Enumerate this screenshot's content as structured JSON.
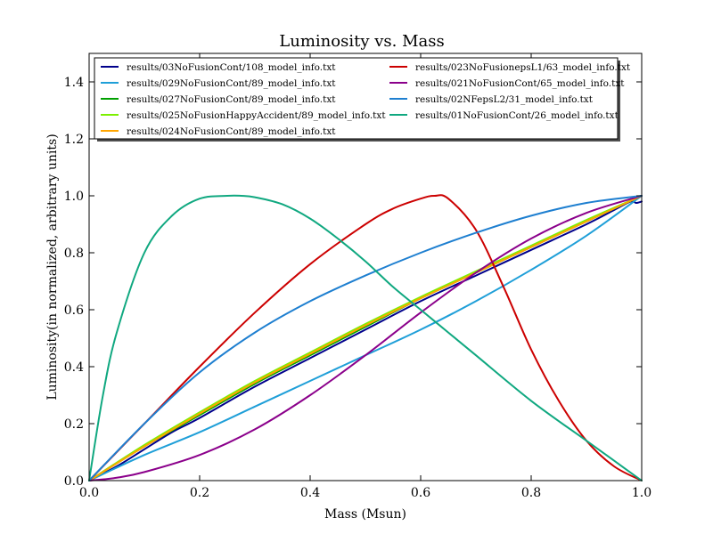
{
  "chart_data": {
    "type": "line",
    "title": "Luminosity vs. Mass",
    "xlabel": "Mass (Msun)",
    "ylabel": "Luminosity(in normalized, arbitrary units)",
    "xlim": [
      0.0,
      1.0
    ],
    "ylim": [
      0.0,
      1.5
    ],
    "xticks": [
      "0.0",
      "0.2",
      "0.4",
      "0.6",
      "0.8",
      "1.0"
    ],
    "yticks": [
      "0.0",
      "0.2",
      "0.4",
      "0.6",
      "0.8",
      "1.0",
      "1.2",
      "1.4"
    ],
    "grid": false,
    "legend_position": "top",
    "series": [
      {
        "name": "results/03NoFusionCont/108_model_info.txt",
        "color": "#00008b",
        "x": [
          0,
          0.05,
          0.1,
          0.15,
          0.2,
          0.3,
          0.4,
          0.5,
          0.6,
          0.7,
          0.8,
          0.9,
          0.95,
          0.98,
          0.99,
          1.0
        ],
        "y": [
          0,
          0.05,
          0.11,
          0.17,
          0.22,
          0.33,
          0.43,
          0.53,
          0.63,
          0.72,
          0.81,
          0.9,
          0.95,
          0.98,
          0.975,
          0.98
        ]
      },
      {
        "name": "results/029NoFusionCont/89_model_info.txt",
        "color": "#1f9fd8",
        "x": [
          0,
          0.1,
          0.2,
          0.3,
          0.4,
          0.5,
          0.6,
          0.7,
          0.8,
          0.9,
          1.0
        ],
        "y": [
          0,
          0.09,
          0.17,
          0.26,
          0.35,
          0.44,
          0.53,
          0.63,
          0.74,
          0.86,
          1.0
        ]
      },
      {
        "name": "results/027NoFusionCont/89_model_info.txt",
        "color": "#00a000",
        "x": [
          0,
          0.1,
          0.2,
          0.3,
          0.4,
          0.5,
          0.6,
          0.7,
          0.8,
          0.9,
          1.0
        ],
        "y": [
          0,
          0.12,
          0.23,
          0.34,
          0.44,
          0.54,
          0.64,
          0.73,
          0.82,
          0.91,
          1.0
        ]
      },
      {
        "name": "results/025NoFusionHappyAccident/89_model_info.txt",
        "color": "#7cf000",
        "x": [
          0,
          0.1,
          0.2,
          0.3,
          0.4,
          0.5,
          0.6,
          0.7,
          0.8,
          0.9,
          1.0
        ],
        "y": [
          0,
          0.125,
          0.24,
          0.35,
          0.45,
          0.55,
          0.645,
          0.735,
          0.825,
          0.915,
          1.0
        ]
      },
      {
        "name": "results/024NoFusionCont/89_model_info.txt",
        "color": "#ffa500",
        "x": [
          0,
          0.1,
          0.2,
          0.3,
          0.4,
          0.5,
          0.6,
          0.7,
          0.8,
          0.9,
          1.0
        ],
        "y": [
          0,
          0.12,
          0.235,
          0.345,
          0.445,
          0.545,
          0.64,
          0.73,
          0.82,
          0.91,
          1.0
        ]
      },
      {
        "name": "results/023NoFusionepsL1/63_model_info.txt",
        "color": "#cc0000",
        "x": [
          0,
          0.1,
          0.2,
          0.3,
          0.4,
          0.5,
          0.55,
          0.6,
          0.625,
          0.65,
          0.7,
          0.75,
          0.8,
          0.85,
          0.9,
          0.95,
          1.0
        ],
        "y": [
          0,
          0.2,
          0.4,
          0.59,
          0.76,
          0.9,
          0.955,
          0.99,
          1.0,
          0.99,
          0.88,
          0.68,
          0.46,
          0.28,
          0.14,
          0.05,
          0.0
        ]
      },
      {
        "name": "results/021NoFusionCont/65_model_info.txt",
        "color": "#8b008b",
        "x": [
          0,
          0.05,
          0.1,
          0.2,
          0.3,
          0.4,
          0.5,
          0.6,
          0.7,
          0.8,
          0.9,
          1.0
        ],
        "y": [
          0,
          0.01,
          0.03,
          0.09,
          0.18,
          0.3,
          0.44,
          0.59,
          0.73,
          0.85,
          0.94,
          1.0
        ]
      },
      {
        "name": "results/02NFepsL2/31_model_info.txt",
        "color": "#1e7fd0",
        "x": [
          0,
          0.1,
          0.2,
          0.3,
          0.4,
          0.5,
          0.6,
          0.7,
          0.8,
          0.9,
          1.0
        ],
        "y": [
          0,
          0.2,
          0.38,
          0.52,
          0.63,
          0.72,
          0.8,
          0.87,
          0.93,
          0.975,
          1.0
        ]
      },
      {
        "name": "results/01NoFusionCont/26_model_info.txt",
        "color": "#10a880",
        "x": [
          0,
          0.025,
          0.05,
          0.1,
          0.15,
          0.2,
          0.25,
          0.275,
          0.3,
          0.35,
          0.4,
          0.45,
          0.5,
          0.55,
          0.6,
          0.65,
          0.7,
          0.8,
          0.9,
          0.95,
          1.0
        ],
        "y": [
          0,
          0.3,
          0.52,
          0.8,
          0.93,
          0.99,
          1.0,
          1.0,
          0.995,
          0.97,
          0.92,
          0.85,
          0.77,
          0.68,
          0.6,
          0.52,
          0.44,
          0.28,
          0.14,
          0.07,
          0.0
        ]
      }
    ]
  }
}
